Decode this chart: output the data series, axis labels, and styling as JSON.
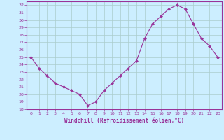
{
  "x": [
    0,
    1,
    2,
    3,
    4,
    5,
    6,
    7,
    8,
    9,
    10,
    11,
    12,
    13,
    14,
    15,
    16,
    17,
    18,
    19,
    20,
    21,
    22,
    23
  ],
  "y": [
    25.0,
    23.5,
    22.5,
    21.5,
    21.0,
    20.5,
    20.0,
    18.5,
    19.0,
    20.5,
    21.5,
    22.5,
    23.5,
    24.5,
    27.5,
    29.5,
    30.5,
    31.5,
    32.0,
    31.5,
    29.5,
    27.5,
    26.5,
    25.0
  ],
  "xlabel": "Windchill (Refroidissement éolien,°C)",
  "xlim_min": -0.5,
  "xlim_max": 23.5,
  "ylim_min": 18,
  "ylim_max": 32.5,
  "yticks": [
    18,
    19,
    20,
    21,
    22,
    23,
    24,
    25,
    26,
    27,
    28,
    29,
    30,
    31,
    32
  ],
  "xticks": [
    0,
    1,
    2,
    3,
    4,
    5,
    6,
    7,
    8,
    9,
    10,
    11,
    12,
    13,
    14,
    15,
    16,
    17,
    18,
    19,
    20,
    21,
    22,
    23
  ],
  "line_color": "#993399",
  "marker": "D",
  "marker_size": 2.0,
  "bg_color": "#cceeff",
  "grid_color": "#aacccc",
  "spine_color": "#993399",
  "tick_color": "#993399",
  "label_color": "#993399",
  "tick_labelsize": 4.5,
  "xlabel_fontsize": 5.5
}
